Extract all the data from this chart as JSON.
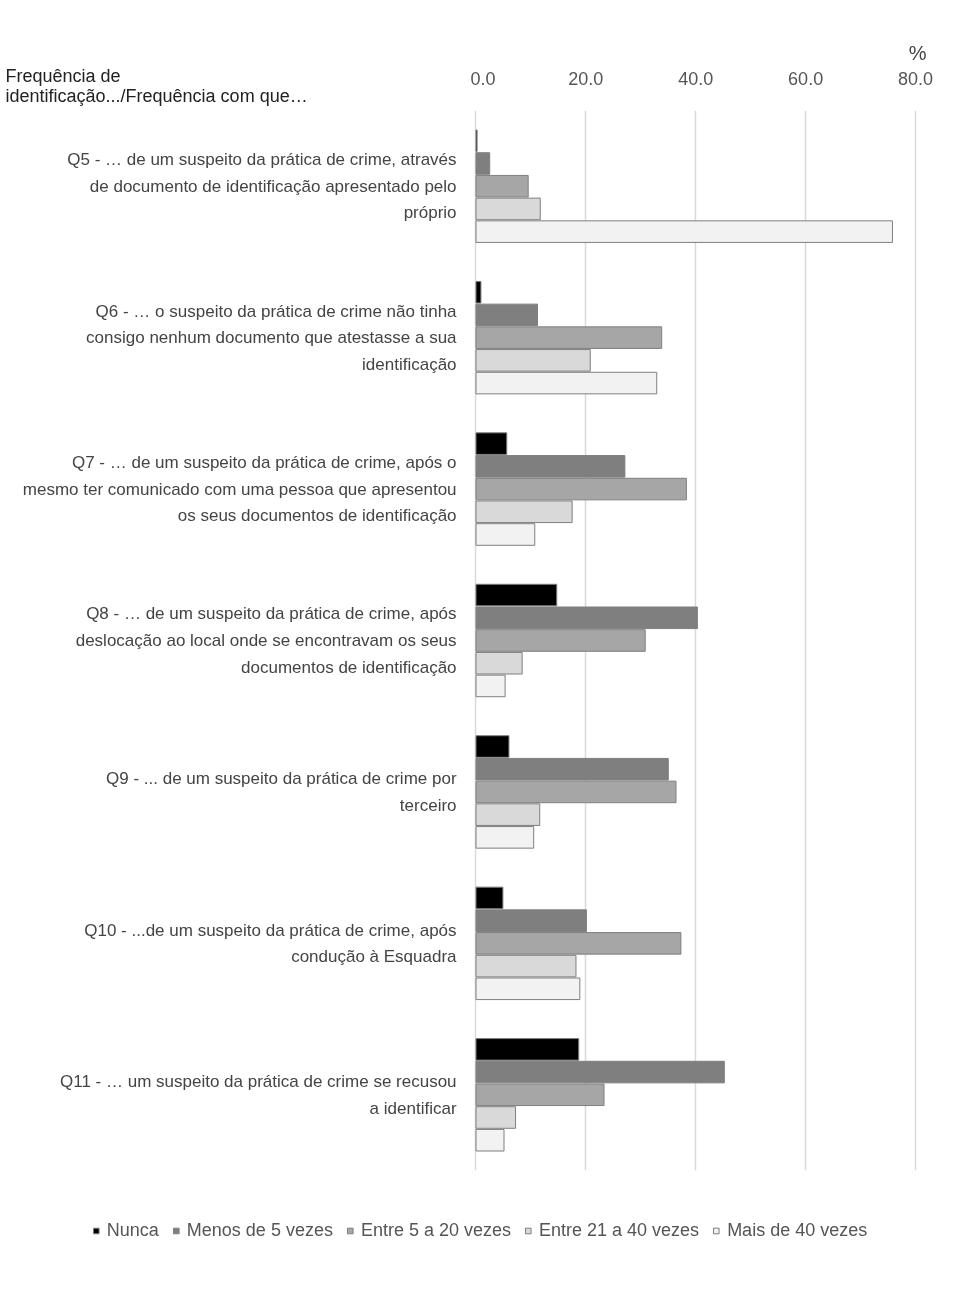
{
  "chart_data": {
    "type": "bar",
    "orientation": "horizontal",
    "title": "Frequência de identificação.../Frequência com que…",
    "xlabel": "%",
    "categories": [
      "Q5 - … de um suspeito da prática de crime, através de documento de identificação apresentado pelo próprio",
      "Q6 - … o suspeito da prática de crime não tinha consigo nenhum documento que atestasse a sua identificação",
      "Q7 - … de um suspeito da prática de crime, após o mesmo ter comunicado com uma pessoa que apresentou os seus documentos de identificação",
      "Q8 - … de um suspeito da prática de crime, após deslocação ao local onde se encontravam os seus documentos de identificação",
      "Q9 - ... de um suspeito da prática de crime por terceiro",
      "Q10 - ...de um suspeito da prática de crime, após condução à Esquadra",
      "Q11 - … um suspeito da prática de crime se recusou a identificar"
    ],
    "series": [
      {
        "name": "Nunca",
        "color": "#000000",
        "values": [
          0.2,
          0.9,
          5.6,
          14.7,
          6.0,
          4.9,
          18.7
        ]
      },
      {
        "name": "Menos de 5 vezes",
        "color": "#7f7f7f",
        "values": [
          2.5,
          11.2,
          27.1,
          40.3,
          35.0,
          20.1,
          45.2
        ]
      },
      {
        "name": "Entre 5 a 20 vezes",
        "color": "#a6a6a6",
        "values": [
          9.5,
          33.8,
          38.3,
          30.8,
          36.4,
          37.3,
          23.3
        ]
      },
      {
        "name": "Entre 21 a 40 vezes",
        "color": "#d9d9d9",
        "values": [
          11.7,
          20.8,
          17.5,
          8.4,
          11.6,
          18.2,
          7.2
        ]
      },
      {
        "name": "Mais de 40 vezes",
        "color": "#f2f2f2",
        "values": [
          75.8,
          32.9,
          10.7,
          5.3,
          10.5,
          18.9,
          5.1
        ]
      }
    ],
    "xlim": [
      0,
      80
    ],
    "xticks": [
      {
        "value": 0,
        "label": "0.0"
      },
      {
        "value": 20,
        "label": "20.0"
      },
      {
        "value": 40,
        "label": "40.0"
      },
      {
        "value": 60,
        "label": "60.0"
      },
      {
        "value": 80,
        "label": "80.0"
      }
    ],
    "grid": "x",
    "legend": "bottom"
  }
}
